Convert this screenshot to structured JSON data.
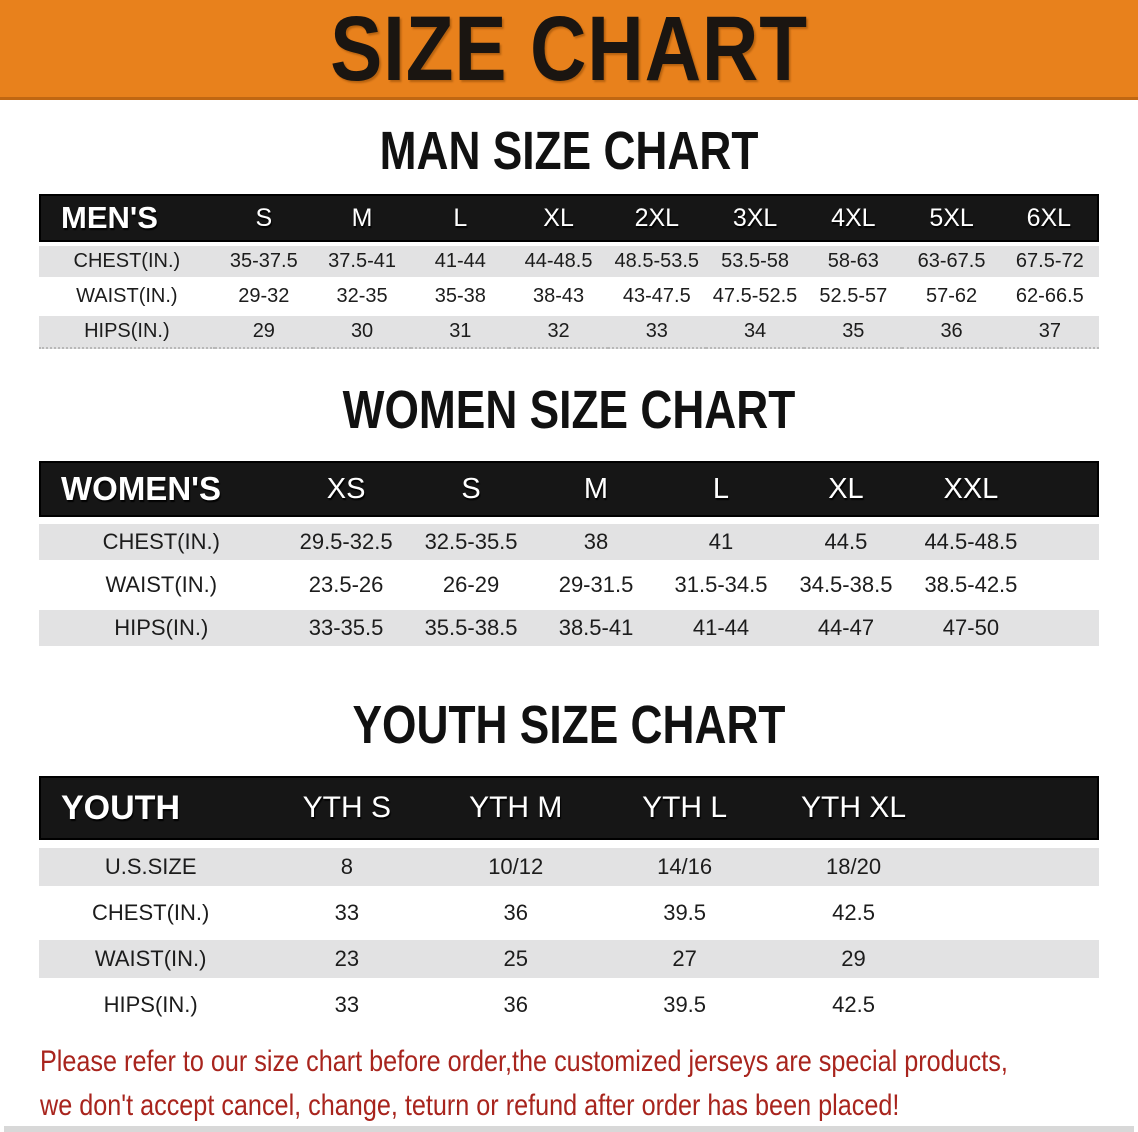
{
  "banner": {
    "title": "SIZE CHART"
  },
  "sections": [
    {
      "id": "men",
      "heading": "MAN SIZE CHART",
      "header": {
        "label": "MEN'S",
        "sizes": [
          "S",
          "M",
          "L",
          "XL",
          "2XL",
          "3XL",
          "4XL",
          "5XL",
          "6XL"
        ]
      },
      "rows": [
        {
          "label": "CHEST(IN.)",
          "values": [
            "35-37.5",
            "37.5-41",
            "41-44",
            "44-48.5",
            "48.5-53.5",
            "53.5-58",
            "58-63",
            "63-67.5",
            "67.5-72"
          ]
        },
        {
          "label": "WAIST(IN.)",
          "values": [
            "29-32",
            "32-35",
            "35-38",
            "38-43",
            "43-47.5",
            "47.5-52.5",
            "52.5-57",
            "57-62",
            "62-66.5"
          ]
        },
        {
          "label": "HIPS(IN.)",
          "values": [
            "29",
            "30",
            "31",
            "32",
            "33",
            "34",
            "35",
            "36",
            "37"
          ]
        }
      ]
    },
    {
      "id": "women",
      "heading": "WOMEN SIZE CHART",
      "header": {
        "label": "WOMEN'S",
        "sizes": [
          "XS",
          "S",
          "M",
          "L",
          "XL",
          "XXL"
        ]
      },
      "rows": [
        {
          "label": "CHEST(IN.)",
          "values": [
            "29.5-32.5",
            "32.5-35.5",
            "38",
            "41",
            "44.5",
            "44.5-48.5"
          ]
        },
        {
          "label": "WAIST(IN.)",
          "values": [
            "23.5-26",
            "26-29",
            "29-31.5",
            "31.5-34.5",
            "34.5-38.5",
            "38.5-42.5"
          ]
        },
        {
          "label": "HIPS(IN.)",
          "values": [
            "33-35.5",
            "35.5-38.5",
            "38.5-41",
            "41-44",
            "44-47",
            "47-50"
          ]
        }
      ]
    },
    {
      "id": "youth",
      "heading": "YOUTH SIZE CHART",
      "header": {
        "label": "YOUTH",
        "sizes": [
          "YTH S",
          "YTH M",
          "YTH L",
          "YTH XL"
        ]
      },
      "rows": [
        {
          "label": "U.S.SIZE",
          "values": [
            "8",
            "10/12",
            "14/16",
            "18/20"
          ]
        },
        {
          "label": "CHEST(IN.)",
          "values": [
            "33",
            "36",
            "39.5",
            "42.5"
          ]
        },
        {
          "label": "WAIST(IN.)",
          "values": [
            "23",
            "25",
            "27",
            "29"
          ]
        },
        {
          "label": "HIPS(IN.)",
          "values": [
            "33",
            "36",
            "39.5",
            "42.5"
          ]
        }
      ]
    }
  ],
  "footer": {
    "line1": "Please refer to our size chart before order,the customized jerseys are special products,",
    "line2": "we don't accept cancel, change, teturn or refund after order has been placed!"
  },
  "colors": {
    "banner-orange": "#E8811C",
    "banner-text": "#1A1511",
    "header-bg": "#161616",
    "header-text": "#FFFFFF",
    "row-shade": "#E2E2E3",
    "footer-red": "#A8241D",
    "heading-text": "#111111"
  }
}
